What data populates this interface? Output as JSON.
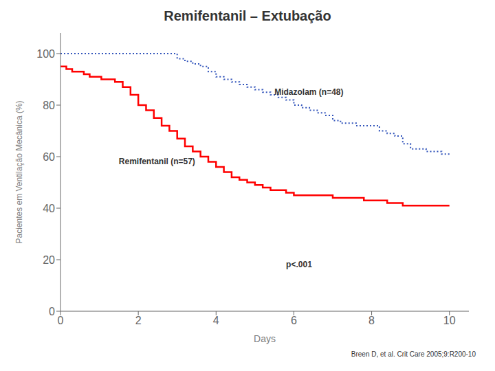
{
  "chart_data": {
    "type": "step",
    "title": "Remifentanil – Extubação",
    "xlabel": "Days",
    "ylabel": "Pacientes em Ventilação Mecânica (%)",
    "xlim": [
      0,
      10.5
    ],
    "ylim": [
      0,
      108
    ],
    "xticks": [
      0,
      2,
      4,
      6,
      8,
      10
    ],
    "yticks": [
      0,
      20,
      40,
      60,
      80,
      100
    ],
    "grid": false,
    "series": [
      {
        "color": "#3355bb",
        "line_style": "dotted",
        "x": [
          0,
          0.2,
          0.4,
          0.6,
          0.8,
          1.0,
          1.2,
          1.4,
          1.6,
          1.8,
          2.0,
          2.2,
          2.4,
          2.6,
          2.8,
          3.0,
          3.2,
          3.4,
          3.6,
          3.8,
          4.0,
          4.2,
          4.4,
          4.6,
          4.8,
          5.0,
          5.2,
          5.4,
          5.6,
          5.8,
          6.0,
          6.2,
          6.4,
          6.6,
          6.8,
          7.0,
          7.2,
          7.4,
          7.6,
          7.8,
          8.0,
          8.2,
          8.4,
          8.6,
          8.8,
          9.0,
          9.2,
          9.4,
          9.6,
          9.8,
          10.0
        ],
        "values": [
          100,
          100,
          100,
          100,
          100,
          100,
          100,
          100,
          100,
          100,
          100,
          100,
          100,
          100,
          100,
          98,
          97,
          96,
          95,
          93,
          91,
          90,
          89,
          88,
          87,
          86,
          85,
          84,
          83,
          82,
          80,
          79,
          78,
          77,
          76,
          74,
          73,
          73,
          72,
          72,
          72,
          70,
          69,
          68,
          65,
          63,
          63,
          62,
          62,
          61,
          61
        ]
      },
      {
        "color": "#ff0000",
        "line_style": "solid",
        "x": [
          0,
          0.15,
          0.3,
          0.45,
          0.6,
          0.75,
          0.9,
          1.05,
          1.2,
          1.4,
          1.6,
          1.8,
          2.0,
          2.2,
          2.4,
          2.6,
          2.8,
          3.0,
          3.2,
          3.4,
          3.6,
          3.8,
          4.0,
          4.2,
          4.4,
          4.6,
          4.8,
          5.0,
          5.2,
          5.4,
          5.6,
          5.8,
          6.0,
          6.2,
          6.4,
          6.6,
          6.8,
          7.0,
          7.2,
          7.4,
          7.6,
          7.8,
          8.0,
          8.2,
          8.4,
          8.6,
          8.8,
          9.0,
          9.2,
          9.4,
          9.6,
          9.8,
          10.0
        ],
        "values": [
          95,
          94,
          93,
          93,
          92,
          91,
          91,
          90,
          90,
          89,
          87,
          84,
          80,
          78,
          75,
          72,
          70,
          67,
          64,
          62,
          60,
          58,
          56,
          54,
          52,
          51,
          50,
          49,
          48,
          47,
          47,
          46,
          45,
          45,
          45,
          45,
          45,
          44,
          44,
          44,
          44,
          43,
          43,
          43,
          42,
          42,
          41,
          41,
          41,
          41,
          41,
          41,
          41
        ]
      }
    ],
    "annotations": [
      {
        "text": "Midazolam (n=48)",
        "x": 5.5,
        "y": 84
      },
      {
        "text": "Remifentanil (n=57)",
        "x": 1.5,
        "y": 57
      },
      {
        "text": "p<.001",
        "x": 5.8,
        "y": 17
      },
      {
        "text": "Breen D, et al. Crit Care 2005;9:R200-10"
      }
    ]
  }
}
